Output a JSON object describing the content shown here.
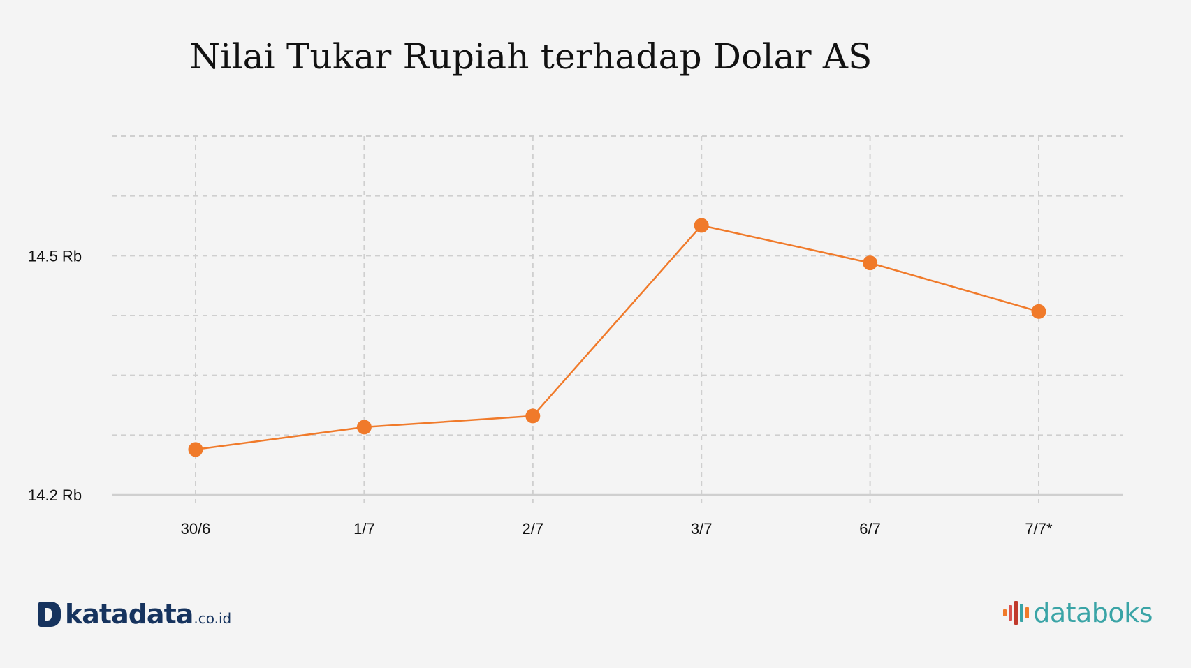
{
  "title": "Nilai Tukar Rupiah terhadap Dolar AS",
  "chart_data": {
    "type": "line",
    "title": "Nilai Tukar Rupiah terhadap Dolar AS",
    "xlabel": "",
    "ylabel": "",
    "categories": [
      "30/6",
      "1/7",
      "2/7",
      "3/7",
      "6/7",
      "7/7*"
    ],
    "series": [
      {
        "values": [
          14257,
          14285,
          14299,
          14538,
          14491,
          14430
        ]
      }
    ],
    "y_ticks": [
      {
        "value": 14200,
        "label": "14.2 Rb"
      },
      {
        "value": 14500,
        "label": "14.5 Rb"
      }
    ],
    "ylim": [
      14200,
      14650
    ],
    "grid": true,
    "line_color": "#f07a2a",
    "marker_color": "#f07a2a"
  },
  "logos": {
    "left": {
      "word": "katadata",
      "suffix": ".co.id",
      "color": "#16335e"
    },
    "right": {
      "word": "databoks",
      "color": "#3aa4a6",
      "bar_colors": [
        "#f07a2a",
        "#d9534f",
        "#c0392b",
        "#3aa4a6"
      ]
    }
  }
}
